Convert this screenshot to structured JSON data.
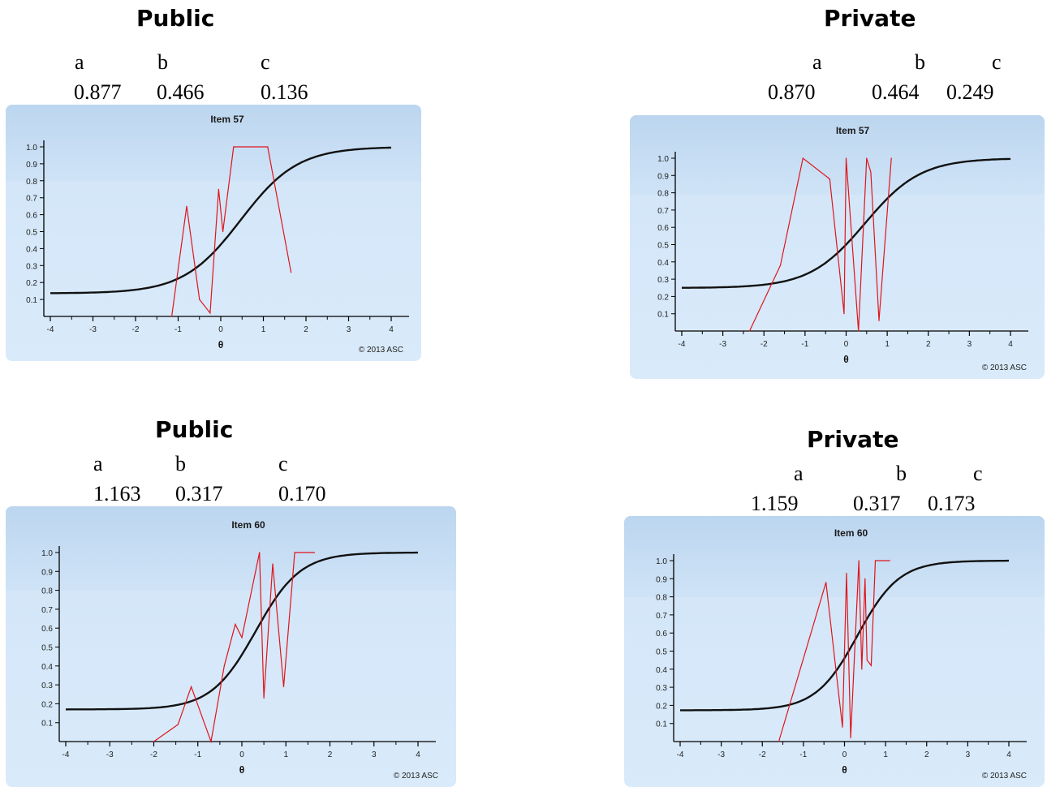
{
  "panels": [
    {
      "id": "p1",
      "heading": "Public",
      "params": {
        "labels": [
          "a",
          "b",
          "c"
        ],
        "values": [
          "0.877",
          "0.466",
          "0.136"
        ]
      }
    },
    {
      "id": "p2",
      "heading": "Private",
      "params": {
        "labels": [
          "a",
          "b",
          "c"
        ],
        "values": [
          "0.870",
          "0.464",
          "0.249"
        ]
      }
    },
    {
      "id": "p3",
      "heading": "Public",
      "params": {
        "labels": [
          "a",
          "b",
          "c"
        ],
        "values": [
          "1.163",
          "0.317",
          "0.170"
        ]
      }
    },
    {
      "id": "p4",
      "heading": "Private",
      "params": {
        "labels": [
          "a",
          "b",
          "c"
        ],
        "values": [
          "1.159",
          "0.317",
          "0.173"
        ]
      }
    }
  ],
  "chart_data": [
    {
      "type": "line",
      "title": "Item 57",
      "xlabel": "θ",
      "ylabel": "",
      "xlim": [
        -4,
        4
      ],
      "ylim": [
        0,
        1
      ],
      "xticks": [
        "-4",
        "-3",
        "-2",
        "-1",
        "0",
        "1",
        "2",
        "3",
        "4"
      ],
      "yticks": [
        "0.1",
        "0.2",
        "0.3",
        "0.4",
        "0.5",
        "0.6",
        "0.7",
        "0.8",
        "0.9",
        "1.0"
      ],
      "copyright": "© 2013 ASC",
      "series": [
        {
          "color": "#111111",
          "kind": "irt",
          "a": 0.877,
          "b": 0.466,
          "c": 0.136
        },
        {
          "color": "#e0141b",
          "kind": "empirical",
          "x": [
            -1.15,
            -0.8,
            -0.5,
            -0.25,
            -0.05,
            0.05,
            0.3,
            1.1,
            1.65
          ],
          "y": [
            0.0,
            0.65,
            0.1,
            0.02,
            0.75,
            0.5,
            1.0,
            1.0,
            0.26
          ]
        }
      ]
    },
    {
      "type": "line",
      "title": "Item 57",
      "xlabel": "θ",
      "ylabel": "",
      "xlim": [
        -4,
        4
      ],
      "ylim": [
        0,
        1
      ],
      "xticks": [
        "-4",
        "-3",
        "-2",
        "-1",
        "0",
        "1",
        "2",
        "3",
        "4"
      ],
      "yticks": [
        "0.1",
        "0.2",
        "0.3",
        "0.4",
        "0.5",
        "0.6",
        "0.7",
        "0.8",
        "0.9",
        "1.0"
      ],
      "copyright": "© 2013 ASC",
      "series": [
        {
          "color": "#111111",
          "kind": "irt",
          "a": 0.87,
          "b": 0.464,
          "c": 0.249
        },
        {
          "color": "#e0141b",
          "kind": "empirical",
          "x": [
            -2.35,
            -1.6,
            -1.05,
            -0.4,
            -0.05,
            0.0,
            0.3,
            0.5,
            0.6,
            0.8,
            1.1
          ],
          "y": [
            0.0,
            0.38,
            1.0,
            0.88,
            0.1,
            1.0,
            0.0,
            1.0,
            0.92,
            0.06,
            1.0
          ]
        }
      ]
    },
    {
      "type": "line",
      "title": "Item 60",
      "xlabel": "θ",
      "ylabel": "",
      "xlim": [
        -4,
        4
      ],
      "ylim": [
        0,
        1
      ],
      "xticks": [
        "-4",
        "-3",
        "-2",
        "-1",
        "0",
        "1",
        "2",
        "3",
        "4"
      ],
      "yticks": [
        "0.1",
        "0.2",
        "0.3",
        "0.4",
        "0.5",
        "0.6",
        "0.7",
        "0.8",
        "0.9",
        "1.0"
      ],
      "copyright": "© 2013 ASC",
      "series": [
        {
          "color": "#111111",
          "kind": "irt",
          "a": 1.163,
          "b": 0.317,
          "c": 0.17
        },
        {
          "color": "#e0141b",
          "kind": "empirical",
          "x": [
            -2.0,
            -1.45,
            -1.15,
            -0.7,
            -0.4,
            -0.15,
            0.0,
            0.4,
            0.5,
            0.7,
            0.95,
            1.2,
            1.65
          ],
          "y": [
            0.0,
            0.09,
            0.29,
            0.0,
            0.4,
            0.62,
            0.55,
            1.0,
            0.23,
            0.94,
            0.29,
            1.0,
            1.0
          ]
        }
      ]
    },
    {
      "type": "line",
      "title": "Item 60",
      "xlabel": "θ",
      "ylabel": "",
      "xlim": [
        -4,
        4
      ],
      "ylim": [
        0,
        1
      ],
      "xticks": [
        "-4",
        "-3",
        "-2",
        "-1",
        "0",
        "1",
        "2",
        "3",
        "4"
      ],
      "yticks": [
        "0.1",
        "0.2",
        "0.3",
        "0.4",
        "0.5",
        "0.6",
        "0.7",
        "0.8",
        "0.9",
        "1.0"
      ],
      "copyright": "© 2013 ASC",
      "series": [
        {
          "color": "#111111",
          "kind": "irt",
          "a": 1.159,
          "b": 0.317,
          "c": 0.173
        },
        {
          "color": "#e0141b",
          "kind": "empirical",
          "x": [
            -1.6,
            -0.45,
            -0.05,
            0.05,
            0.15,
            0.35,
            0.42,
            0.5,
            0.55,
            0.65,
            0.75,
            1.1
          ],
          "y": [
            0.0,
            0.88,
            0.08,
            0.93,
            0.02,
            1.0,
            0.4,
            0.9,
            0.45,
            0.42,
            1.0,
            1.0
          ]
        }
      ]
    }
  ]
}
